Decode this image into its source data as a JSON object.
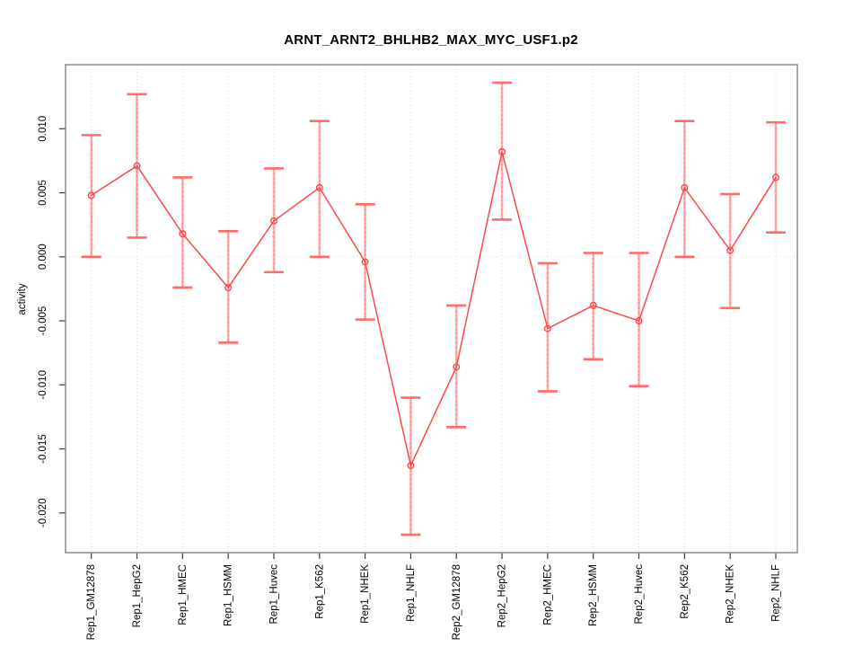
{
  "title": "ARNT_ARNT2_BHLHB2_MAX_MYC_USF1.p2",
  "chart_data": {
    "type": "line",
    "title": "ARNT_ARNT2_BHLHB2_MAX_MYC_USF1.p2",
    "xlabel": "",
    "ylabel": "activity",
    "legend": "none",
    "grid": "dotted vertical gridline at each category; dotted horizontal line at y=0",
    "marker": "open-circle",
    "error_bars": true,
    "ylim": [
      -0.0231,
      0.015
    ],
    "yticks": [
      0.01,
      0.005,
      0.0,
      -0.005,
      -0.01,
      -0.015,
      -0.02
    ],
    "ytick_labels": [
      "0.010",
      "0.005",
      "0.000",
      "-0.005",
      "-0.010",
      "-0.015",
      "-0.020"
    ],
    "categories": [
      "Rep1_GM12878",
      "Rep1_HepG2",
      "Rep1_HMEC",
      "Rep1_HSMM",
      "Rep1_Huvec",
      "Rep1_K562",
      "Rep1_NHEK",
      "Rep1_NHLF",
      "Rep2_GM12878",
      "Rep2_HepG2",
      "Rep2_HMEC",
      "Rep2_HSMM",
      "Rep2_Huvec",
      "Rep2_K562",
      "Rep2_NHEK",
      "Rep2_NHLF"
    ],
    "series": [
      {
        "name": "activity",
        "values": [
          0.0048,
          0.0071,
          0.0018,
          -0.0024,
          0.0028,
          0.0054,
          -0.0004,
          -0.0163,
          -0.0086,
          0.0082,
          -0.0056,
          -0.0038,
          -0.005,
          0.0054,
          0.0005,
          0.0062
        ],
        "err_lo": [
          0.0,
          0.0015,
          -0.0024,
          -0.0067,
          -0.0012,
          0.0,
          -0.0049,
          -0.0217,
          -0.0133,
          0.0029,
          -0.0105,
          -0.008,
          -0.0101,
          0.0,
          -0.004,
          0.0019
        ],
        "err_hi": [
          0.0095,
          0.0127,
          0.0062,
          0.002,
          0.0069,
          0.0106,
          0.0041,
          -0.011,
          -0.0038,
          0.0136,
          -0.0005,
          0.0003,
          0.0003,
          0.0106,
          0.0049,
          0.0105
        ]
      }
    ],
    "colors": {
      "line": "#fb4a4a",
      "marker": "#fb4a4a",
      "error_bar": "#ffafaf",
      "error_bar_dash": "#ff8585",
      "error_cap": "#ff6b6b",
      "grid": "#dadada",
      "box": "#8a8a8a",
      "tick": "#3c3c3c",
      "text": "#000000"
    }
  }
}
